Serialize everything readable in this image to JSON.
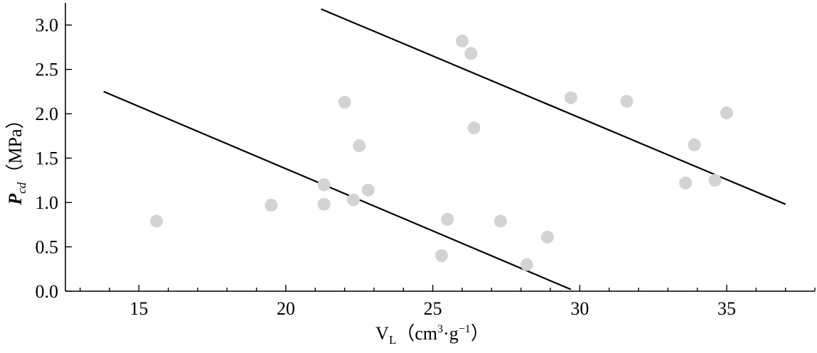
{
  "chart_data": {
    "type": "scatter",
    "title": "",
    "xlabel": {
      "main": "V",
      "subscript": "L",
      "unit_open": "（cm",
      "unit_sup": "3",
      "unit_mid": "·g",
      "unit_sup2": "−1",
      "unit_close": "）"
    },
    "ylabel": {
      "main": "P",
      "subscript": "cd",
      "unit": "（MPa）"
    },
    "xlim": [
      12.5,
      38
    ],
    "ylim": [
      0,
      3.25
    ],
    "x_ticks": [
      15,
      20,
      25,
      30,
      35
    ],
    "y_ticks": [
      0.0,
      0.5,
      1.0,
      1.5,
      2.0,
      2.5,
      3.0
    ],
    "x_tick_labels": [
      "15",
      "20",
      "25",
      "30",
      "35"
    ],
    "y_tick_labels": [
      "0.0",
      "0.5",
      "1.0",
      "1.5",
      "2.0",
      "2.5",
      "3.0"
    ],
    "grid": false,
    "point_color": "#d3d3d3",
    "line_color": "#000000",
    "points": [
      {
        "x": 15.6,
        "y": 0.79
      },
      {
        "x": 19.5,
        "y": 0.97
      },
      {
        "x": 21.3,
        "y": 1.2
      },
      {
        "x": 21.3,
        "y": 0.98
      },
      {
        "x": 22.0,
        "y": 2.13
      },
      {
        "x": 22.3,
        "y": 1.03
      },
      {
        "x": 22.5,
        "y": 1.64
      },
      {
        "x": 22.8,
        "y": 1.14
      },
      {
        "x": 25.3,
        "y": 0.4
      },
      {
        "x": 25.5,
        "y": 0.81
      },
      {
        "x": 26.0,
        "y": 2.82
      },
      {
        "x": 26.3,
        "y": 2.68
      },
      {
        "x": 26.4,
        "y": 1.84
      },
      {
        "x": 27.3,
        "y": 0.79
      },
      {
        "x": 28.2,
        "y": 0.3
      },
      {
        "x": 28.9,
        "y": 0.61
      },
      {
        "x": 29.7,
        "y": 2.18
      },
      {
        "x": 31.6,
        "y": 2.14
      },
      {
        "x": 33.6,
        "y": 1.22
      },
      {
        "x": 33.9,
        "y": 1.65
      },
      {
        "x": 34.6,
        "y": 1.25
      },
      {
        "x": 35.0,
        "y": 2.01
      }
    ],
    "lines": [
      {
        "x": [
          13.8,
          29.7
        ],
        "y": [
          2.25,
          0.02
        ]
      },
      {
        "x": [
          21.2,
          37.0
        ],
        "y": [
          3.18,
          0.98
        ]
      }
    ]
  }
}
